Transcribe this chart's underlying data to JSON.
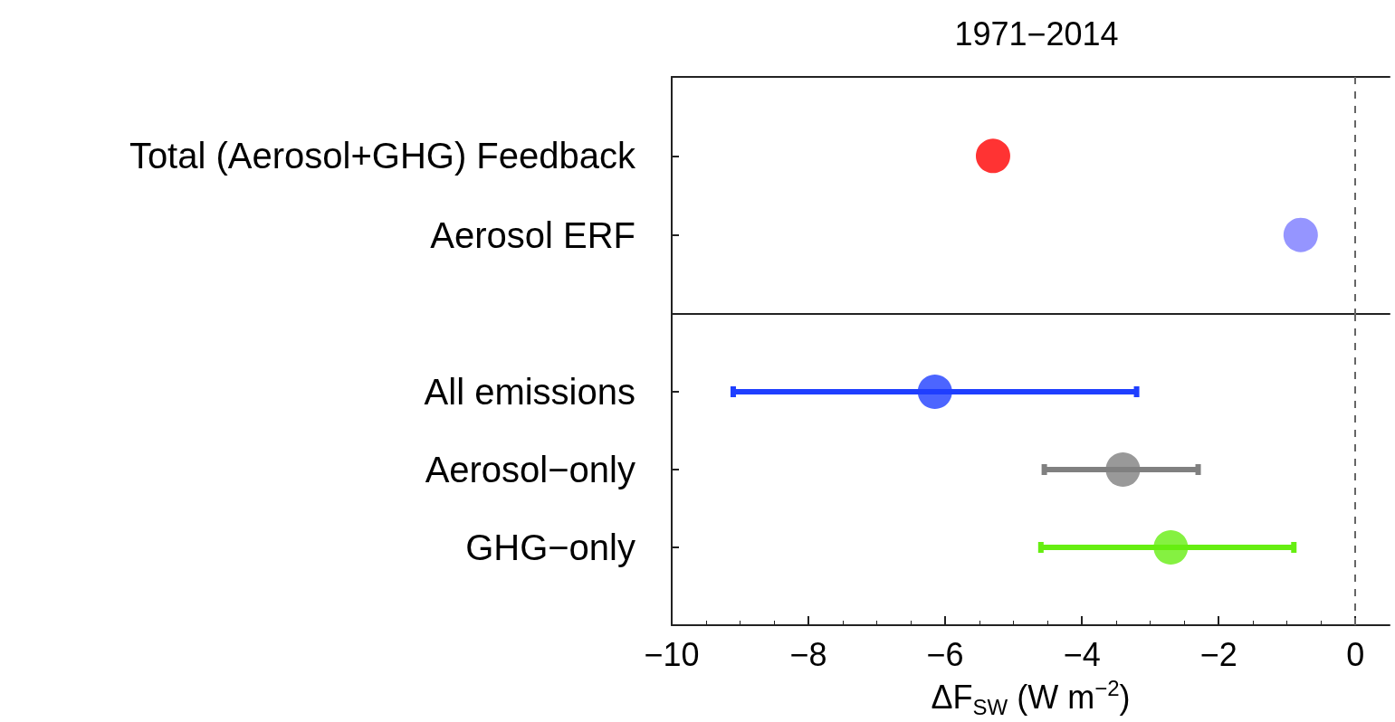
{
  "chart_data": [
    {
      "type": "scatter",
      "title": "1971−2014",
      "orientation": "horizontal",
      "categories": [
        "Total (Aerosol+GHG) Feedback",
        "Aerosol ERF"
      ],
      "values": [
        -5.3,
        -0.8
      ],
      "colors": [
        "#ff0000",
        "#7a7aff"
      ],
      "marker": "circle",
      "xlim": [
        -10,
        0.5
      ],
      "tick_labels": "y",
      "grid": false,
      "ref_lines": [
        {
          "axis": "x",
          "value": 0,
          "color": "#666666",
          "line_style": "dashed"
        }
      ]
    },
    {
      "type": "scatter",
      "orientation": "horizontal",
      "categories": [
        "All emissions",
        "Aerosol−only",
        "GHG−only"
      ],
      "values": [
        -6.15,
        -3.4,
        -2.7
      ],
      "errors": [
        [
          -9.1,
          -3.2
        ],
        [
          -4.55,
          -2.3
        ],
        [
          -4.6,
          -0.9
        ]
      ],
      "colors": [
        "#1f3fff",
        "#808080",
        "#66ee11"
      ],
      "marker": "circle",
      "xlabel": "ΔF$_{SW}$ (W m$^{−2}$)",
      "xlim": [
        -10,
        0.5
      ],
      "xticks": [
        {
          "value": -10,
          "label": "−10"
        },
        {
          "value": -8,
          "label": "−8"
        },
        {
          "value": -6,
          "label": "−6"
        },
        {
          "value": -4,
          "label": "−4"
        },
        {
          "value": -2,
          "label": "−2"
        },
        {
          "value": 0,
          "label": "0"
        }
      ],
      "grid": false,
      "ref_lines": [
        {
          "axis": "x",
          "value": 0,
          "color": "#666666",
          "line_style": "dashed"
        }
      ]
    }
  ]
}
